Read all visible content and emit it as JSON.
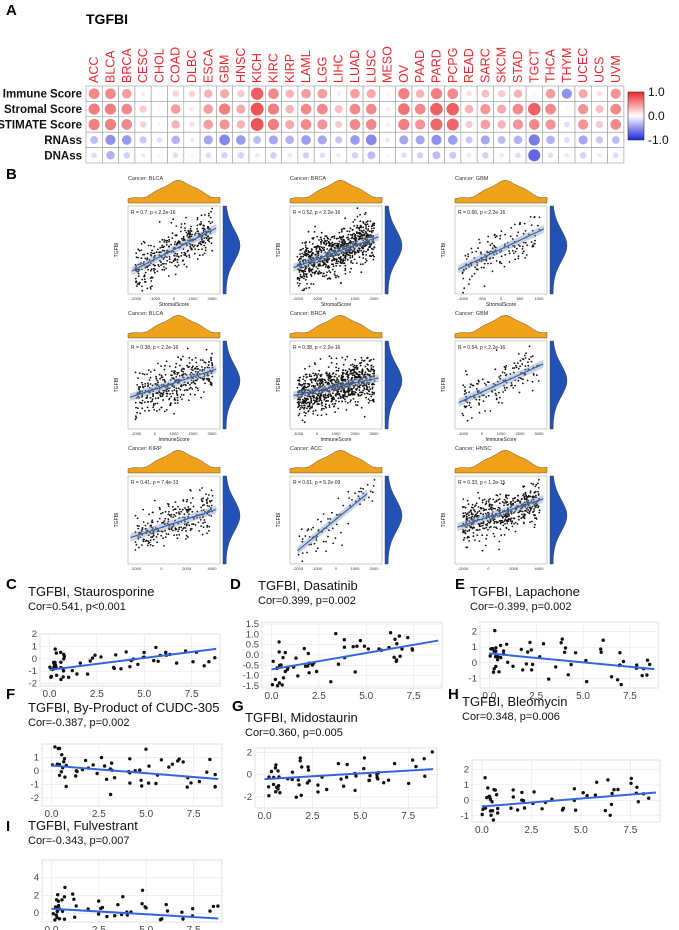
{
  "panel_labels": [
    "A",
    "B",
    "C",
    "D",
    "E",
    "F",
    "G",
    "H",
    "I"
  ],
  "heatmap": {
    "gene": "TGFBI",
    "cancers": [
      "ACC",
      "BLCA",
      "BRCA",
      "CESC",
      "CHOL",
      "COAD",
      "DLBC",
      "ESCA",
      "GBM",
      "HNSC",
      "KICH",
      "KIRC",
      "KIRP",
      "LAML",
      "LGG",
      "LIHC",
      "LUAD",
      "LUSC",
      "MESO",
      "OV",
      "PAAD",
      "PARD",
      "PCPG",
      "READ",
      "SARC",
      "SKCM",
      "STAD",
      "TGCT",
      "THCA",
      "THYM",
      "UCEC",
      "UCS",
      "UVM"
    ],
    "rows": [
      "Immune Score",
      "Stromal Score",
      "ESTIMATE Score",
      "RNAss",
      "DNAss"
    ],
    "colorbar_ticks": [
      "1.0",
      "0.0",
      "-1.0"
    ],
    "colors": {
      "high": "#e8282d",
      "mid": "#ffffff",
      "low": "#1f24d8"
    }
  },
  "chart_data": [
    {
      "type": "heatmap",
      "x": [
        "ACC",
        "BLCA",
        "BRCA",
        "CESC",
        "CHOL",
        "COAD",
        "DLBC",
        "ESCA",
        "GBM",
        "HNSC",
        "KICH",
        "KIRC",
        "KIRP",
        "LAML",
        "LGG",
        "LIHC",
        "LUAD",
        "LUSC",
        "MESO",
        "OV",
        "PAAD",
        "PARD",
        "PCPG",
        "READ",
        "SARC",
        "SKCM",
        "STAD",
        "TGCT",
        "THCA",
        "THYM",
        "UCEC",
        "UCS",
        "UVM"
      ],
      "y": [
        "Immune Score",
        "Stromal Score",
        "ESTIMATE Score",
        "RNAss",
        "DNAss"
      ],
      "values": [
        [
          0.55,
          0.55,
          0.45,
          0.1,
          0.05,
          0.2,
          0.2,
          0.35,
          0.4,
          0.25,
          0.75,
          0.55,
          0.35,
          0.45,
          0.45,
          0.1,
          0.45,
          0.4,
          0.05,
          0.6,
          0.35,
          0.6,
          0.55,
          0.15,
          0.3,
          0.25,
          0.35,
          0.05,
          0.45,
          -0.5,
          0.4,
          0.15,
          0.5
        ],
        [
          0.6,
          0.6,
          0.55,
          0.25,
          0.05,
          0.45,
          0.1,
          0.45,
          0.6,
          0.4,
          0.8,
          0.6,
          0.35,
          0.55,
          0.55,
          0.3,
          0.55,
          0.55,
          0.1,
          0.65,
          0.55,
          0.75,
          0.75,
          0.35,
          0.5,
          0.4,
          0.55,
          0.75,
          0.55,
          0.05,
          0.5,
          0.3,
          0.55
        ],
        [
          0.6,
          0.6,
          0.55,
          0.2,
          0.05,
          0.35,
          0.15,
          0.45,
          0.5,
          0.35,
          0.8,
          0.6,
          0.4,
          0.55,
          0.5,
          0.25,
          0.55,
          0.55,
          0.1,
          0.6,
          0.5,
          0.7,
          0.7,
          0.25,
          0.45,
          0.35,
          0.5,
          0.55,
          0.5,
          -0.15,
          0.5,
          0.25,
          0.55
        ],
        [
          -0.3,
          -0.5,
          -0.45,
          -0.25,
          -0.15,
          -0.35,
          -0.1,
          -0.4,
          -0.55,
          -0.45,
          -0.3,
          -0.4,
          -0.35,
          -0.45,
          -0.4,
          -0.25,
          -0.45,
          -0.55,
          -0.1,
          -0.4,
          -0.4,
          -0.5,
          -0.45,
          -0.25,
          -0.4,
          -0.3,
          -0.35,
          -0.6,
          -0.35,
          -0.15,
          -0.4,
          -0.25,
          -0.3
        ],
        [
          -0.15,
          -0.35,
          -0.2,
          -0.1,
          -0.05,
          -0.15,
          -0.05,
          -0.15,
          -0.2,
          -0.2,
          -0.1,
          -0.2,
          -0.1,
          -0.2,
          -0.15,
          -0.1,
          -0.2,
          -0.3,
          -0.05,
          -0.15,
          -0.2,
          -0.3,
          -0.25,
          -0.1,
          -0.2,
          -0.1,
          -0.15,
          -0.7,
          -0.15,
          -0.1,
          -0.2,
          -0.1,
          -0.15
        ]
      ]
    },
    {
      "type": "scatter",
      "title": "Cancer: BLCA",
      "annotation": "R = 0.7, p < 2.2e-16",
      "xlabel": "StromalScore",
      "ylabel": "TGFBI",
      "xlim": [
        -2500,
        2500
      ],
      "xticks": [
        "-2000",
        "-1000",
        "0",
        "1000",
        "2000"
      ],
      "yticks": [
        "",
        "",
        "",
        ""
      ],
      "trend": [
        [
          -2300,
          2.6
        ],
        [
          2300,
          7.5
        ]
      ],
      "n": 380
    },
    {
      "type": "scatter",
      "title": "Cancer: BRCA",
      "annotation": "R = 0.52, p < 2.2e-16",
      "xlabel": "StromalScore",
      "ylabel": "TGFBI",
      "xlim": [
        -2600,
        2600
      ],
      "xticks": [
        "-2000",
        "-1000",
        "0",
        "1000",
        "2000"
      ],
      "yticks": [
        "",
        "",
        ""
      ],
      "trend": [
        [
          -2400,
          3.0
        ],
        [
          2400,
          6.5
        ]
      ],
      "n": 850
    },
    {
      "type": "scatter",
      "title": "Cancer: GBM",
      "annotation": "R = 0.66, p < 2.2e-16",
      "xlabel": "StromalScore",
      "ylabel": "TGFBI",
      "xlim": [
        -1500,
        1500
      ],
      "xticks": [
        "-1000",
        "-500",
        "0",
        "500",
        "1000"
      ],
      "yticks": [
        "",
        "",
        ""
      ],
      "trend": [
        [
          -1400,
          2.8
        ],
        [
          1400,
          7.4
        ]
      ],
      "n": 160
    },
    {
      "type": "scatter",
      "title": "Cancer: BLCA",
      "annotation": "R = 0.38, p < 2.2e-16",
      "xlabel": "ImmuneScore",
      "ylabel": "TGFBI",
      "xlim": [
        -1500,
        3500
      ],
      "xticks": [
        "-1000",
        "0",
        "1000",
        "2000",
        "3000"
      ],
      "yticks": [
        "",
        "",
        "",
        ""
      ],
      "trend": [
        [
          -1400,
          3.6
        ],
        [
          3300,
          6.8
        ]
      ],
      "n": 380
    },
    {
      "type": "scatter",
      "title": "Cancer: BRCA",
      "annotation": "R = 0.38, p < 2.2e-16",
      "xlabel": "ImmuneScore",
      "ylabel": "TGFBI",
      "xlim": [
        -1500,
        4000
      ],
      "xticks": [
        "-1000",
        "0",
        "1000",
        "2000",
        "3000"
      ],
      "yticks": [
        "",
        "",
        ""
      ],
      "trend": [
        [
          -1300,
          3.8
        ],
        [
          3800,
          5.8
        ]
      ],
      "n": 850
    },
    {
      "type": "scatter",
      "title": "Cancer: GBM",
      "annotation": "R = 0.54, p < 2.2e-16",
      "xlabel": "ImmuneScore",
      "ylabel": "TGFBI",
      "xlim": [
        -1500,
        3500
      ],
      "xticks": [
        "-1000",
        "0",
        "1000",
        "2000",
        "3000"
      ],
      "yticks": [
        "",
        "",
        ""
      ],
      "trend": [
        [
          -1300,
          3.0
        ],
        [
          3300,
          7.4
        ]
      ],
      "n": 160
    },
    {
      "type": "scatter",
      "title": "Cancer: KIRP",
      "annotation": "R = 0.41, p = 7.4e-13",
      "xlabel": "ESTIMATEScore",
      "ylabel": "TGFBI",
      "xlim": [
        -3000,
        4500
      ],
      "xticks": [
        "-2000",
        "0",
        "2000",
        "4000"
      ],
      "yticks": [
        "",
        "",
        "",
        ""
      ],
      "trend": [
        [
          -2800,
          3.0
        ],
        [
          4200,
          6.2
        ]
      ],
      "n": 280
    },
    {
      "type": "scatter",
      "title": "Cancer: ACC",
      "annotation": "R = 0.61, p = 5.2e-09",
      "xlabel": "ESTIMATEScore",
      "ylabel": "TGFBI",
      "xlim": [
        -2500,
        2500
      ],
      "xticks": [
        "-2000",
        "-1000",
        "0",
        "1000",
        "2000"
      ],
      "yticks": [
        "",
        "",
        "",
        ""
      ],
      "trend": [
        [
          -2100,
          1.5
        ],
        [
          1700,
          8.0
        ]
      ],
      "n": 78
    },
    {
      "type": "scatter",
      "title": "Cancer: HNSC",
      "annotation": "R = 0.33, p < 1.2e-15",
      "xlabel": "ESTIMATEScore",
      "ylabel": "TGFBI",
      "xlim": [
        -2500,
        5000
      ],
      "xticks": [
        "-2000",
        "0",
        "2000",
        "4000"
      ],
      "yticks": [
        "",
        "",
        "",
        ""
      ],
      "trend": [
        [
          -2300,
          4.2
        ],
        [
          4700,
          7.4
        ]
      ],
      "n": 500
    },
    {
      "type": "scatter",
      "title": "TGFBI, Staurosporine",
      "annotation": "Cor=0.541, p<0.001",
      "xlim": [
        -0.5,
        9
      ],
      "ylim": [
        -2.2,
        2
      ],
      "xticks": [
        "0.0",
        "2.5",
        "5.0",
        "7.5"
      ],
      "yticks": [
        "2",
        "1",
        "0",
        "-1",
        "-2"
      ],
      "yvals": [
        2,
        1,
        0,
        -1,
        -2
      ],
      "trend": [
        [
          0,
          -0.9
        ],
        [
          8.8,
          0.8
        ]
      ],
      "n": 60
    },
    {
      "type": "scatter",
      "title": "TGFBI, Dasatinib",
      "annotation": "Cor=0.399, p=0.002",
      "xlim": [
        -0.5,
        9
      ],
      "ylim": [
        -1.6,
        1.6
      ],
      "xticks": [
        "0.0",
        "2.5",
        "5.0",
        "7.5"
      ],
      "yticks": [
        "1.5",
        "1.0",
        "0.5",
        "0.0",
        "-0.5",
        "-1.0",
        "-1.5"
      ],
      "yvals": [
        1.5,
        1,
        0.5,
        0,
        -0.5,
        -1,
        -1.5
      ],
      "trend": [
        [
          0,
          -0.7
        ],
        [
          8.8,
          0.7
        ]
      ],
      "n": 60
    },
    {
      "type": "scatter",
      "title": "TGFBI, Lapachone",
      "annotation": "Cor=-0.399, p=0.002",
      "xlim": [
        -0.5,
        9
      ],
      "ylim": [
        -1.6,
        2.6
      ],
      "xticks": [
        "0.0",
        "2.5",
        "5.0",
        "7.5"
      ],
      "yticks": [
        "2",
        "1",
        "0",
        "-1"
      ],
      "yvals": [
        2,
        1,
        0,
        -1
      ],
      "trend": [
        [
          0,
          0.6
        ],
        [
          8.8,
          -0.4
        ]
      ],
      "n": 60
    },
    {
      "type": "scatter",
      "title": "TGFBI, By-Product of CUDC-305",
      "annotation": "Cor=-0.387, p=0.002",
      "xlim": [
        -0.5,
        9
      ],
      "ylim": [
        -2.6,
        2
      ],
      "xticks": [
        "0.0",
        "2.5",
        "5.0",
        "7.5"
      ],
      "yticks": [
        "1",
        "0",
        "-1",
        "-2"
      ],
      "yvals": [
        1,
        0,
        -1,
        -2
      ],
      "trend": [
        [
          0,
          0.4
        ],
        [
          8.8,
          -0.6
        ]
      ],
      "n": 60
    },
    {
      "type": "scatter",
      "title": "TGFBI, Midostaurin",
      "annotation": "Cor=0.360, p=0.005",
      "xlim": [
        -0.5,
        9
      ],
      "ylim": [
        -3,
        2.4
      ],
      "xticks": [
        "0.0",
        "2.5",
        "5.0",
        "7.5"
      ],
      "yticks": [
        "2",
        "0",
        "-2"
      ],
      "yvals": [
        2,
        0,
        -2
      ],
      "trend": [
        [
          0,
          -0.4
        ],
        [
          8.8,
          0.5
        ]
      ],
      "n": 60
    },
    {
      "type": "scatter",
      "title": "TGFBI, Bleomycin",
      "annotation": "Cor=0.348, p=0.006",
      "xlim": [
        -0.5,
        9
      ],
      "ylim": [
        -1.4,
        2.6
      ],
      "xticks": [
        "0.0",
        "2.5",
        "5.0",
        "7.5"
      ],
      "yticks": [
        "2",
        "1",
        "0",
        "-1"
      ],
      "yvals": [
        2,
        1,
        0,
        -1
      ],
      "trend": [
        [
          0,
          -0.4
        ],
        [
          8.8,
          0.5
        ]
      ],
      "n": 60
    },
    {
      "type": "scatter",
      "title": "TGFBI, Fulvestrant",
      "annotation": "Cor=-0.343, p=0.007",
      "xlim": [
        -0.5,
        9
      ],
      "ylim": [
        -1,
        6
      ],
      "xticks": [
        "0.0",
        "2.5",
        "5.0",
        "7.5"
      ],
      "yticks": [
        "4",
        "2",
        "0"
      ],
      "yvals": [
        4,
        2,
        0
      ],
      "trend": [
        [
          0,
          0.5
        ],
        [
          8.8,
          -0.6
        ]
      ],
      "n": 60
    }
  ]
}
